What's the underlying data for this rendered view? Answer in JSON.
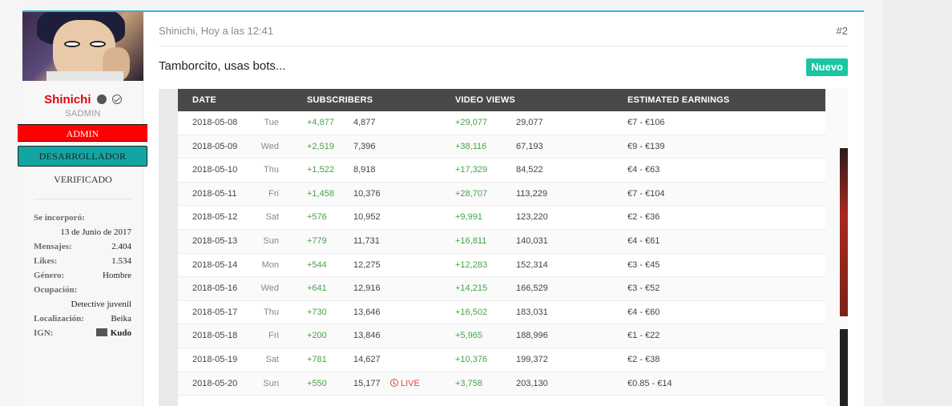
{
  "post": {
    "author": "Shinichi",
    "timestamp": "Shinichi, Hoy a las 12:41",
    "post_number": "#2",
    "message": "Tamborcito, usas bots...",
    "new_badge": "Nuevo",
    "accent_color": "#29b6d8"
  },
  "user": {
    "name": "Shinichi",
    "name_color": "#e3000f",
    "title": "SADMIN",
    "banners": {
      "admin": "ADMIN",
      "developer": "DESARROLLADOR"
    },
    "verified": "VERIFICADO",
    "stats": {
      "joined_label": "Se incorporó:",
      "joined_value": "13 de Junio de 2017",
      "messages_label": "Mensajes:",
      "messages_value": "2.404",
      "likes_label": "Likes:",
      "likes_value": "1.534",
      "gender_label": "Género:",
      "gender_value": "Hombre",
      "occupation_label": "Ocupación:",
      "occupation_value": "Detective juvenil",
      "location_label": "Localización:",
      "location_value": "Beika",
      "ign_label": "IGN:",
      "ign_value": "Kudo"
    }
  },
  "table": {
    "headers": {
      "date": "DATE",
      "subscribers": "SUBSCRIBERS",
      "views": "VIDEO VIEWS",
      "earnings": "ESTIMATED EARNINGS"
    },
    "live_label": "LIVE",
    "rows": [
      {
        "date": "2018-05-08",
        "day": "Tue",
        "sub_delta": "+4,877",
        "sub_total": "4,877",
        "view_delta": "+29,077",
        "view_total": "29,077",
        "earnings": "€7  -  €106"
      },
      {
        "date": "2018-05-09",
        "day": "Wed",
        "sub_delta": "+2,519",
        "sub_total": "7,396",
        "view_delta": "+38,116",
        "view_total": "67,193",
        "earnings": "€9  -  €139"
      },
      {
        "date": "2018-05-10",
        "day": "Thu",
        "sub_delta": "+1,522",
        "sub_total": "8,918",
        "view_delta": "+17,329",
        "view_total": "84,522",
        "earnings": "€4  -  €63"
      },
      {
        "date": "2018-05-11",
        "day": "Fri",
        "sub_delta": "+1,458",
        "sub_total": "10,376",
        "view_delta": "+28,707",
        "view_total": "113,229",
        "earnings": "€7  -  €104"
      },
      {
        "date": "2018-05-12",
        "day": "Sat",
        "sub_delta": "+576",
        "sub_total": "10,952",
        "view_delta": "+9,991",
        "view_total": "123,220",
        "earnings": "€2  -  €36"
      },
      {
        "date": "2018-05-13",
        "day": "Sun",
        "sub_delta": "+779",
        "sub_total": "11,731",
        "view_delta": "+16,811",
        "view_total": "140,031",
        "earnings": "€4  -  €61"
      },
      {
        "date": "2018-05-14",
        "day": "Mon",
        "sub_delta": "+544",
        "sub_total": "12,275",
        "view_delta": "+12,283",
        "view_total": "152,314",
        "earnings": "€3  -  €45"
      },
      {
        "date": "2018-05-16",
        "day": "Wed",
        "sub_delta": "+641",
        "sub_total": "12,916",
        "view_delta": "+14,215",
        "view_total": "166,529",
        "earnings": "€3  -  €52"
      },
      {
        "date": "2018-05-17",
        "day": "Thu",
        "sub_delta": "+730",
        "sub_total": "13,646",
        "view_delta": "+16,502",
        "view_total": "183,031",
        "earnings": "€4  -  €60"
      },
      {
        "date": "2018-05-18",
        "day": "Fri",
        "sub_delta": "+200",
        "sub_total": "13,846",
        "view_delta": "+5,965",
        "view_total": "188,996",
        "earnings": "€1  -  €22"
      },
      {
        "date": "2018-05-19",
        "day": "Sat",
        "sub_delta": "+781",
        "sub_total": "14,627",
        "view_delta": "+10,376",
        "view_total": "199,372",
        "earnings": "€2  -  €38"
      },
      {
        "date": "2018-05-20",
        "day": "Sun",
        "sub_delta": "+550",
        "sub_total": "15,177",
        "view_delta": "+3,758",
        "view_total": "203,130",
        "earnings": "€0.85  -  €14",
        "live": true
      }
    ]
  }
}
